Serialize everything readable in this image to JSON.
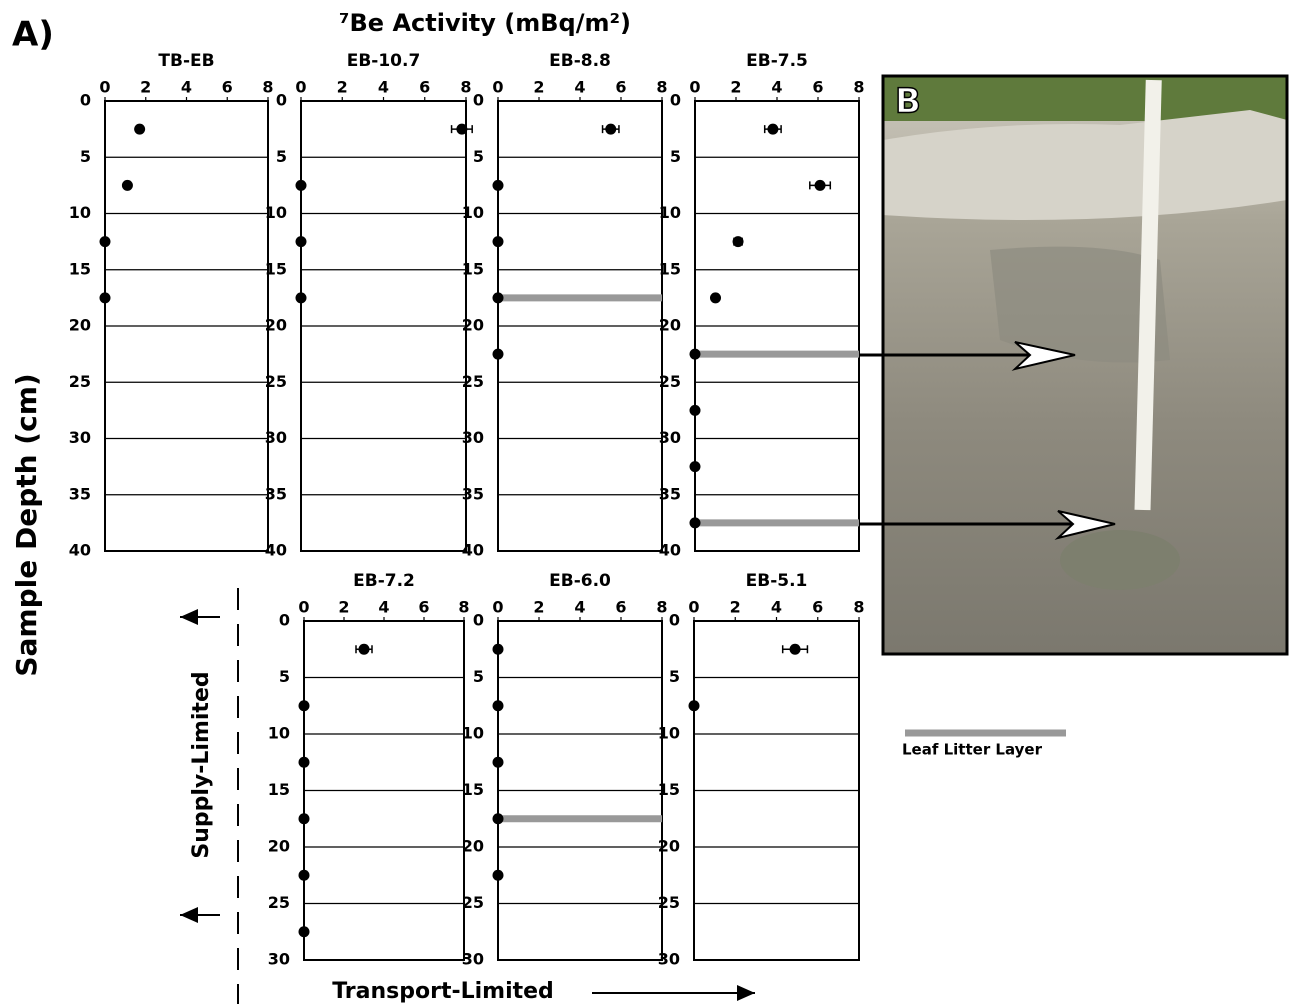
{
  "figure": {
    "panel_label": "A)",
    "x_axis_title": "⁷Be Activity (mBq/m²)",
    "y_axis_title": "Sample Depth (cm)",
    "supply_label": "Supply-Limited",
    "transport_label": "Transport-Limited",
    "legend_label": "Leaf Litter Layer",
    "photo_label": "B"
  },
  "chart_data": [
    {
      "type": "scatter",
      "title": "TB-EB",
      "x": [
        1.7,
        1.1,
        0,
        0
      ],
      "y": [
        2.5,
        7.5,
        12.5,
        17.5
      ],
      "x_error": [
        null,
        null,
        null,
        null
      ],
      "leaf_litter_depths": [],
      "xlim": [
        0,
        8
      ],
      "xticks": [
        0,
        2,
        4,
        6,
        8
      ],
      "ylim": [
        0,
        40
      ],
      "yticks": [
        0,
        5,
        10,
        15,
        20,
        25,
        30,
        35,
        40
      ],
      "y_inverted": true,
      "grid": true,
      "color": "#000000"
    },
    {
      "type": "scatter",
      "title": "EB-10.7",
      "x": [
        7.8,
        0,
        0,
        0
      ],
      "y": [
        2.5,
        7.5,
        12.5,
        17.5
      ],
      "x_error": [
        0.5,
        null,
        null,
        null
      ],
      "leaf_litter_depths": [],
      "xlim": [
        0,
        8
      ],
      "xticks": [
        0,
        2,
        4,
        6,
        8
      ],
      "ylim": [
        0,
        40
      ],
      "yticks": [
        0,
        5,
        10,
        15,
        20,
        25,
        30,
        35,
        40
      ],
      "y_inverted": true,
      "grid": true,
      "color": "#000000"
    },
    {
      "type": "scatter",
      "title": "EB-8.8",
      "x": [
        5.5,
        0,
        0,
        0,
        0
      ],
      "y": [
        2.5,
        7.5,
        12.5,
        17.5,
        22.5
      ],
      "x_error": [
        0.4,
        null,
        null,
        null,
        null
      ],
      "leaf_litter_depths": [
        17.5
      ],
      "xlim": [
        0,
        8
      ],
      "xticks": [
        0,
        2,
        4,
        6,
        8
      ],
      "ylim": [
        0,
        40
      ],
      "yticks": [
        0,
        5,
        10,
        15,
        20,
        25,
        30,
        35,
        40
      ],
      "y_inverted": true,
      "grid": true,
      "color": "#000000"
    },
    {
      "type": "scatter",
      "title": "EB-7.5",
      "x": [
        3.8,
        6.1,
        2.1,
        1.0,
        0,
        0,
        0,
        0
      ],
      "y": [
        2.5,
        7.5,
        12.5,
        17.5,
        22.5,
        27.5,
        32.5,
        37.5
      ],
      "x_error": [
        0.4,
        0.5,
        0.2,
        null,
        null,
        null,
        null,
        null
      ],
      "leaf_litter_depths": [
        22.5,
        37.5
      ],
      "xlim": [
        0,
        8
      ],
      "xticks": [
        0,
        2,
        4,
        6,
        8
      ],
      "ylim": [
        0,
        40
      ],
      "yticks": [
        0,
        5,
        10,
        15,
        20,
        25,
        30,
        35,
        40
      ],
      "y_inverted": true,
      "grid": true,
      "color": "#000000"
    },
    {
      "type": "scatter",
      "title": "EB-7.2",
      "x": [
        3.0,
        0,
        0,
        0,
        0,
        0
      ],
      "y": [
        2.5,
        7.5,
        12.5,
        17.5,
        22.5,
        27.5
      ],
      "x_error": [
        0.4,
        null,
        null,
        null,
        null,
        null
      ],
      "leaf_litter_depths": [],
      "xlim": [
        0,
        8
      ],
      "xticks": [
        0,
        2,
        4,
        6,
        8
      ],
      "ylim": [
        0,
        30
      ],
      "yticks": [
        0,
        5,
        10,
        15,
        20,
        25,
        30
      ],
      "y_inverted": true,
      "grid": true,
      "color": "#000000"
    },
    {
      "type": "scatter",
      "title": "EB-6.0",
      "x": [
        0,
        0,
        0,
        0,
        0
      ],
      "y": [
        2.5,
        7.5,
        12.5,
        17.5,
        22.5
      ],
      "x_error": [
        null,
        null,
        null,
        null,
        null
      ],
      "leaf_litter_depths": [
        17.5
      ],
      "xlim": [
        0,
        8
      ],
      "xticks": [
        0,
        2,
        4,
        6,
        8
      ],
      "ylim": [
        0,
        30
      ],
      "yticks": [
        0,
        5,
        10,
        15,
        20,
        25,
        30
      ],
      "y_inverted": true,
      "grid": true,
      "color": "#000000"
    },
    {
      "type": "scatter",
      "title": "EB-5.1",
      "x": [
        4.9,
        0
      ],
      "y": [
        2.5,
        7.5
      ],
      "x_error": [
        0.6,
        null
      ],
      "leaf_litter_depths": [],
      "xlim": [
        0,
        8
      ],
      "xticks": [
        0,
        2,
        4,
        6,
        8
      ],
      "ylim": [
        0,
        30
      ],
      "yticks": [
        0,
        5,
        10,
        15,
        20,
        25,
        30
      ],
      "y_inverted": true,
      "grid": true,
      "color": "#000000"
    }
  ]
}
